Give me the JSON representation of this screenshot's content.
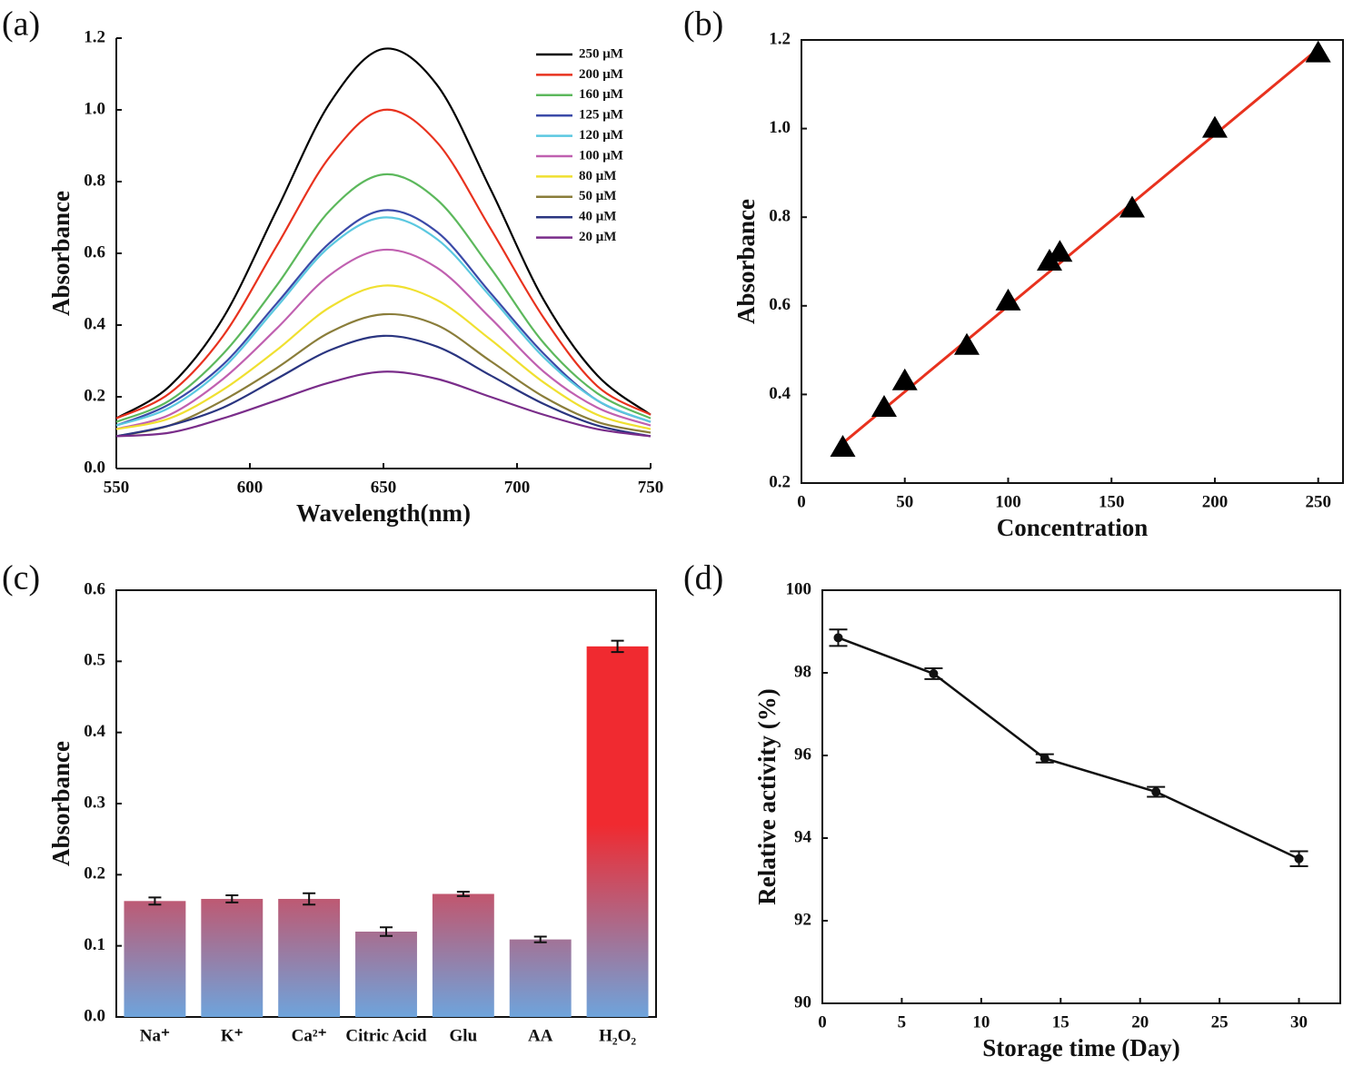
{
  "chart_data": [
    {
      "type": "line",
      "panel_label": "(a)",
      "xlabel": "Wavelength(nm)",
      "ylabel": "Absorbance",
      "x": [
        550,
        570,
        590,
        610,
        630,
        650,
        670,
        690,
        710,
        730,
        750
      ],
      "xlim": [
        550,
        750
      ],
      "xticks": [
        550,
        600,
        650,
        700,
        750
      ],
      "ylim": [
        0,
        1.2
      ],
      "yticks": [
        {
          "value": 0,
          "label": "0.0"
        },
        0.2,
        0.4,
        0.6,
        0.8,
        {
          "value": 1,
          "label": "1.0"
        },
        1.2
      ],
      "series": [
        {
          "name": "250 μM",
          "color": "#000000",
          "values": [
            0.14,
            0.23,
            0.42,
            0.72,
            1.02,
            1.17,
            1.07,
            0.78,
            0.47,
            0.26,
            0.15
          ]
        },
        {
          "name": "200 μM",
          "color": "#e8321e",
          "values": [
            0.14,
            0.21,
            0.37,
            0.62,
            0.87,
            1.0,
            0.91,
            0.67,
            0.42,
            0.23,
            0.15
          ]
        },
        {
          "name": "160 μM",
          "color": "#5cb85c",
          "values": [
            0.13,
            0.19,
            0.32,
            0.51,
            0.72,
            0.82,
            0.75,
            0.56,
            0.35,
            0.21,
            0.14
          ]
        },
        {
          "name": "125 μM",
          "color": "#3b4aa8",
          "values": [
            0.12,
            0.18,
            0.29,
            0.46,
            0.63,
            0.72,
            0.66,
            0.49,
            0.32,
            0.19,
            0.13
          ]
        },
        {
          "name": "120 μM",
          "color": "#5bc8e0",
          "values": [
            0.12,
            0.17,
            0.28,
            0.45,
            0.62,
            0.7,
            0.64,
            0.48,
            0.31,
            0.19,
            0.13
          ]
        },
        {
          "name": "100 μM",
          "color": "#c060b0",
          "values": [
            0.11,
            0.15,
            0.25,
            0.39,
            0.54,
            0.61,
            0.56,
            0.42,
            0.27,
            0.17,
            0.12
          ]
        },
        {
          "name": "80 μM",
          "color": "#f0e030",
          "values": [
            0.11,
            0.14,
            0.22,
            0.33,
            0.45,
            0.51,
            0.47,
            0.36,
            0.24,
            0.15,
            0.11
          ]
        },
        {
          "name": "50 μM",
          "color": "#8a7d3a",
          "values": [
            0.09,
            0.12,
            0.19,
            0.28,
            0.38,
            0.43,
            0.4,
            0.3,
            0.2,
            0.13,
            0.1
          ]
        },
        {
          "name": "40 μM",
          "color": "#2a3580",
          "values": [
            0.09,
            0.12,
            0.17,
            0.25,
            0.33,
            0.37,
            0.34,
            0.26,
            0.18,
            0.12,
            0.09
          ]
        },
        {
          "name": "20 μM",
          "color": "#7a2d8a",
          "values": [
            0.09,
            0.1,
            0.14,
            0.19,
            0.24,
            0.27,
            0.25,
            0.2,
            0.15,
            0.11,
            0.09
          ]
        }
      ]
    },
    {
      "type": "scatter",
      "panel_label": "(b)",
      "xlabel": "Concentration",
      "ylabel": "Absorbance",
      "x": [
        20,
        40,
        50,
        80,
        100,
        120,
        125,
        160,
        200,
        250
      ],
      "y": [
        0.28,
        0.37,
        0.43,
        0.51,
        0.61,
        0.7,
        0.72,
        0.82,
        1.0,
        1.17
      ],
      "color": "#000000",
      "fit": {
        "x": [
          20,
          250
        ],
        "y": [
          0.29,
          1.18
        ],
        "color": "#e8321e"
      },
      "xlim": [
        0,
        262
      ],
      "xticks": [
        0,
        50,
        100,
        150,
        200,
        250
      ],
      "ylim": [
        0.2,
        1.2
      ],
      "yticks": [
        0.2,
        0.4,
        0.6,
        0.8,
        {
          "value": 1,
          "label": "1.0"
        },
        1.2
      ]
    },
    {
      "type": "bar",
      "panel_label": "(c)",
      "ylabel": "Absorbance",
      "categories": [
        "Na⁺",
        "K⁺",
        "Ca²⁺",
        "Citric Acid",
        "Glu",
        "AA",
        "H₂O₂"
      ],
      "values": [
        0.163,
        0.166,
        0.166,
        0.12,
        0.173,
        0.109,
        0.521
      ],
      "errors": [
        0.005,
        0.005,
        0.008,
        0.006,
        0.003,
        0.004,
        0.008
      ],
      "gradient": [
        "#f02a30",
        "#6ea4dc"
      ],
      "ylim": [
        0,
        0.6
      ],
      "yticks": [
        {
          "value": 0,
          "label": "0.0"
        },
        0.1,
        0.2,
        0.3,
        0.4,
        0.5,
        0.6
      ]
    },
    {
      "type": "errorline",
      "panel_label": "(d)",
      "xlabel": "Storage time (Day)",
      "ylabel": "Relative activity (%)",
      "x": [
        1,
        7,
        14,
        21,
        30
      ],
      "values": [
        98.85,
        97.98,
        95.93,
        95.12,
        93.5
      ],
      "errors": [
        0.2,
        0.13,
        0.1,
        0.12,
        0.18
      ],
      "color": "#111111",
      "xlim": [
        0,
        32.6
      ],
      "xticks": [
        0,
        5,
        10,
        15,
        20,
        25,
        30
      ],
      "ylim": [
        90,
        100
      ],
      "yticks": [
        90,
        92,
        94,
        96,
        98,
        100
      ]
    }
  ]
}
